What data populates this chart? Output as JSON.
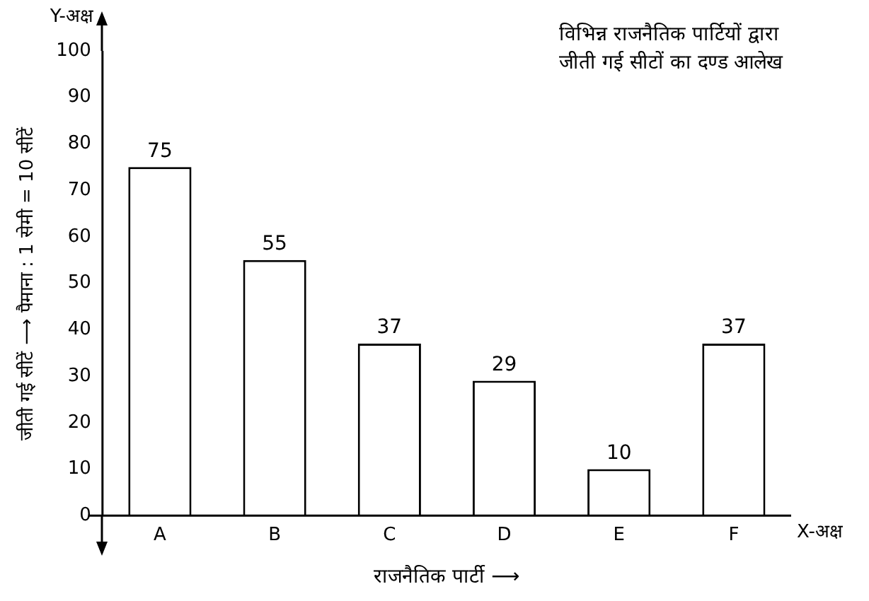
{
  "chart_data": {
    "type": "bar",
    "title": "विभिन्न राजनैतिक पार्टियों द्वारा जीती गई सीटों का दण्ड आलेख",
    "xlabel": "राजनैतिक पार्टी ⟶",
    "ylabel": "जीती गई सीटें ⟶ पैमाना : 1 सेमी = 10 सीटें",
    "annotations": [
      "Y-अक्ष",
      "X-अक्ष"
    ],
    "categories": [
      "A",
      "B",
      "C",
      "D",
      "E",
      "F"
    ],
    "values": [
      75,
      55,
      37,
      29,
      10,
      37
    ],
    "color": "#ffffff",
    "ylim": [
      0,
      100
    ],
    "yticks": [
      0,
      10,
      20,
      30,
      40,
      50,
      60,
      70,
      80,
      90,
      100
    ],
    "grid": false,
    "data_labels": true
  }
}
